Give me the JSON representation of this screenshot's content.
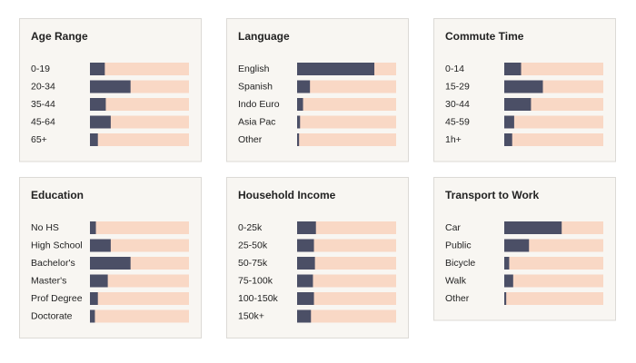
{
  "chart_data": [
    {
      "type": "bar",
      "orientation": "horizontal",
      "title": "Age Range",
      "categories": [
        "0-19",
        "20-34",
        "35-44",
        "45-64",
        "65+"
      ],
      "values": [
        15,
        41,
        16,
        21,
        8
      ],
      "xlim": [
        0,
        100
      ],
      "color": "#4b4f66",
      "track_color": "#f9d8c5"
    },
    {
      "type": "bar",
      "orientation": "horizontal",
      "title": "Language",
      "categories": [
        "English",
        "Spanish",
        "Indo Euro",
        "Asia Pac",
        "Other"
      ],
      "values": [
        78,
        13,
        6,
        3,
        2
      ],
      "xlim": [
        0,
        100
      ],
      "color": "#4b4f66",
      "track_color": "#f9d8c5"
    },
    {
      "type": "bar",
      "orientation": "horizontal",
      "title": "Commute Time",
      "categories": [
        "0-14",
        "15-29",
        "30-44",
        "45-59",
        "1h+"
      ],
      "values": [
        17,
        39,
        27,
        10,
        8
      ],
      "xlim": [
        0,
        100
      ],
      "color": "#4b4f66",
      "track_color": "#f9d8c5"
    },
    {
      "type": "bar",
      "orientation": "horizontal",
      "title": "Education",
      "categories": [
        "No HS",
        "High School",
        "Bachelor's",
        "Master's",
        "Prof Degree",
        "Doctorate"
      ],
      "values": [
        6,
        21,
        41,
        18,
        8,
        5
      ],
      "xlim": [
        0,
        100
      ],
      "color": "#4b4f66",
      "track_color": "#f9d8c5"
    },
    {
      "type": "bar",
      "orientation": "horizontal",
      "title": "Household Income",
      "categories": [
        "0-25k",
        "25-50k",
        "50-75k",
        "75-100k",
        "100-150k",
        "150k+"
      ],
      "values": [
        19,
        17,
        18,
        16,
        17,
        14
      ],
      "xlim": [
        0,
        100
      ],
      "color": "#4b4f66",
      "track_color": "#f9d8c5"
    },
    {
      "type": "bar",
      "orientation": "horizontal",
      "title": "Transport to Work",
      "categories": [
        "Car",
        "Public",
        "Bicycle",
        "Walk",
        "Other"
      ],
      "values": [
        58,
        25,
        5,
        9,
        2
      ],
      "xlim": [
        0,
        100
      ],
      "color": "#4b4f66",
      "track_color": "#f9d8c5"
    }
  ]
}
